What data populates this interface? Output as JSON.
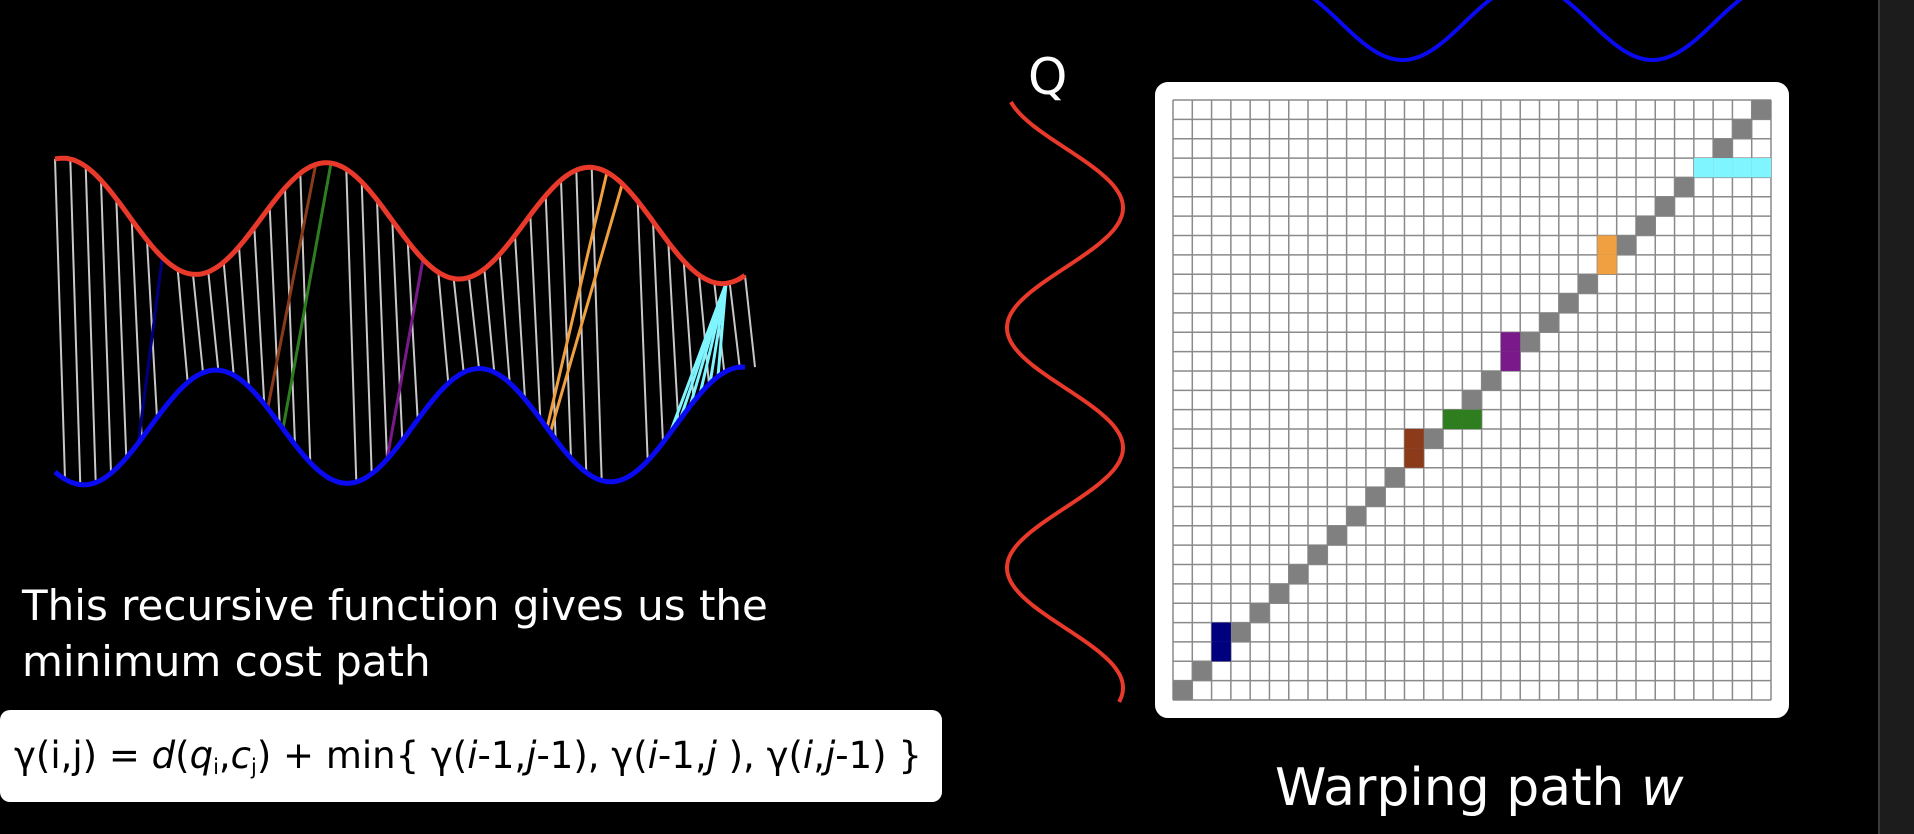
{
  "caption": {
    "line1": "This recursive function gives us the",
    "line2": "minimum cost path"
  },
  "formula": {
    "p1": "γ(i,j)  = ",
    "p2": "d",
    "p3": "(",
    "p4": "q",
    "p5": "i",
    "p6": ",",
    "p7": "c",
    "p8": "j",
    "p9": ") + min{ γ(",
    "p10": "i",
    "p11": "-1,",
    "p12": "j",
    "p13": "-1), γ(",
    "p14": "i",
    "p15": "-1,",
    "p16": "j",
    "p17": " ), γ(",
    "p18": "i",
    "p19": ",",
    "p20": "j",
    "p21": "-1) }"
  },
  "q_label": "Q",
  "grid_title": {
    "prefix": "Warping path ",
    "var": "w"
  },
  "grid": {
    "rows": 31,
    "cols": 31,
    "highlights": [
      {
        "color": "#00007f",
        "cells": [
          [
            3,
            0
          ],
          [
            4,
            0
          ]
        ]
      },
      {
        "color": "#8b3a1a",
        "cells": [
          [
            12,
            0
          ],
          [
            13,
            0
          ]
        ]
      },
      {
        "color": "#2e7d1e",
        "cells": [
          [
            14,
            0
          ],
          [
            14,
            1
          ]
        ]
      },
      {
        "color": "#7a1a8a",
        "cells": [
          [
            18,
            0
          ],
          [
            19,
            0
          ]
        ]
      },
      {
        "color": "#f0a040",
        "cells": [
          [
            24,
            0
          ],
          [
            25,
            0
          ]
        ]
      },
      {
        "color": "#7ff5ff",
        "cells": [
          [
            30,
            0
          ],
          [
            30,
            1
          ],
          [
            30,
            2
          ],
          [
            30,
            3
          ]
        ]
      }
    ]
  },
  "colors": {
    "background": "#000000",
    "series_top": "#e8392a",
    "series_bottom": "#0a0af0",
    "grid_line": "#8a8a8a",
    "path_cell": "#808080"
  }
}
